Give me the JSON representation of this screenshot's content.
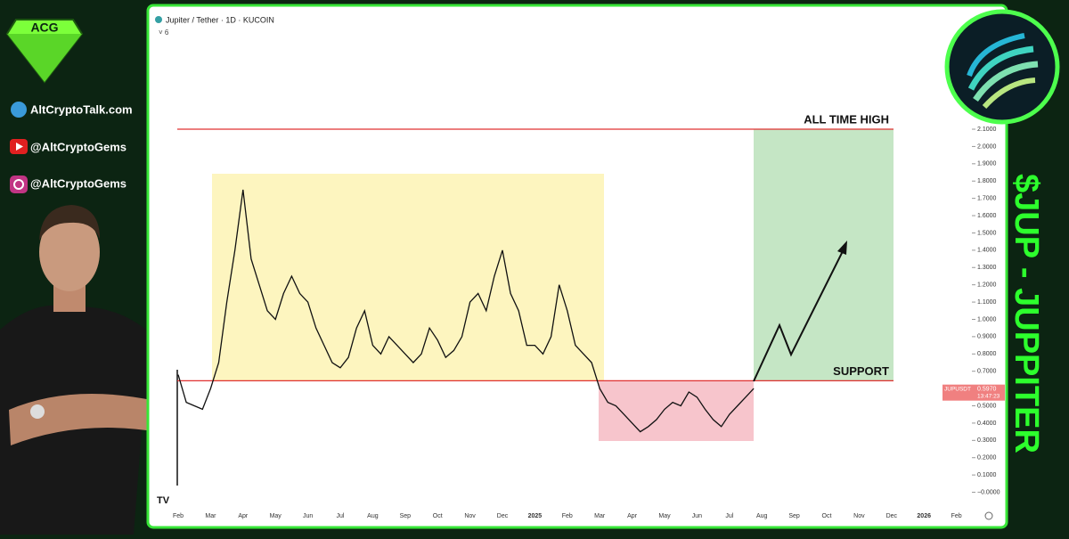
{
  "sidebar": {
    "website": "AltCryptoTalk.com",
    "youtube": "@AltCryptoGems",
    "instagram": "@AltCryptoGems"
  },
  "banner": "$JUP - JUPPITER",
  "chart_data": {
    "type": "line",
    "title": "Jupiter / Tether · 1D · KUCOIN",
    "indicators": 6,
    "categories": [
      "Feb",
      null,
      null,
      null,
      "Mar",
      null,
      null,
      null,
      "Apr",
      null,
      null,
      null,
      "May",
      null,
      null,
      null,
      "Jun",
      null,
      null,
      null,
      "Jul",
      null,
      null,
      null,
      "Aug",
      null,
      null,
      null,
      "Sep",
      null,
      null,
      null,
      "Oct",
      null,
      null,
      null,
      "Nov",
      null,
      null,
      null,
      "Dec",
      null,
      null,
      null,
      "2025",
      null,
      null,
      null,
      "Feb",
      null,
      null,
      null,
      "Mar",
      null,
      null,
      null,
      "Apr",
      null,
      null,
      null,
      "May",
      null,
      null,
      null,
      "Jun",
      null,
      null,
      null,
      "Jul",
      null,
      null,
      null,
      "Aug",
      null,
      null,
      null,
      "Sep",
      null,
      null,
      null,
      "Oct",
      null,
      null,
      null,
      "Nov",
      null,
      null,
      null,
      "Dec",
      null,
      null,
      null,
      "2026",
      null,
      null,
      null,
      "Feb",
      null
    ],
    "series": [
      {
        "name": "JUPUSDT",
        "color": "#111111",
        "values": [
          0.68,
          0.52,
          0.5,
          0.48,
          0.6,
          0.75,
          1.1,
          1.4,
          1.75,
          1.35,
          1.2,
          1.05,
          1.0,
          1.15,
          1.25,
          1.15,
          1.1,
          0.95,
          0.85,
          0.75,
          0.72,
          0.78,
          0.95,
          1.05,
          0.85,
          0.8,
          0.9,
          0.85,
          0.8,
          0.75,
          0.8,
          0.95,
          0.88,
          0.78,
          0.82,
          0.9,
          1.1,
          1.15,
          1.05,
          1.25,
          1.4,
          1.15,
          1.05,
          0.85,
          0.85,
          0.8,
          0.9,
          1.2,
          1.05,
          0.85,
          0.8,
          0.75,
          0.6,
          0.52,
          0.5,
          0.45,
          0.4,
          0.35,
          0.38,
          0.42,
          0.48,
          0.52,
          0.5,
          0.58,
          0.55,
          0.48,
          0.42,
          0.38,
          0.45,
          0.5,
          0.55,
          0.6,
          null,
          null,
          null,
          null,
          null,
          null,
          null,
          null,
          null,
          null,
          null,
          null,
          null,
          null,
          null,
          null,
          null,
          null,
          null,
          null,
          null,
          null,
          null,
          null,
          null,
          null
        ]
      }
    ],
    "ylim": [
      -0.09,
      2.77
    ],
    "yticks": [
      {
        "value": 0,
        "label": "−0.0000"
      },
      {
        "value": 0.1,
        "label": "0.1000"
      },
      {
        "value": 0.2,
        "label": "0.2000"
      },
      {
        "value": 0.3,
        "label": "0.3000"
      },
      {
        "value": 0.4,
        "label": "0.4000"
      },
      {
        "value": 0.5,
        "label": "0.5000"
      },
      {
        "value": 0.6,
        "label": "0.6000"
      },
      {
        "value": 0.7,
        "label": "0.7000"
      },
      {
        "value": 0.8,
        "label": "0.8000"
      },
      {
        "value": 0.9,
        "label": "0.9000"
      },
      {
        "value": 1.0,
        "label": "1.0000"
      },
      {
        "value": 1.1,
        "label": "1.1000"
      },
      {
        "value": 1.2,
        "label": "1.2000"
      },
      {
        "value": 1.3,
        "label": "1.3000"
      },
      {
        "value": 1.4,
        "label": "1.4000"
      },
      {
        "value": 1.5,
        "label": "1.5000"
      },
      {
        "value": 1.6,
        "label": "1.6000"
      },
      {
        "value": 1.7,
        "label": "1.7000"
      },
      {
        "value": 1.8,
        "label": "1.8000"
      },
      {
        "value": 1.9,
        "label": "1.9000"
      },
      {
        "value": 2.0,
        "label": "2.0000"
      },
      {
        "value": 2.1,
        "label": "2.1000"
      }
    ],
    "levels": [
      {
        "value": 2.1,
        "label": "ALL TIME HIGH",
        "color": "#e03030"
      },
      {
        "value": 0.645,
        "label": "SUPPORT",
        "color": "#e03030"
      }
    ],
    "price_tag": {
      "symbol": "JUPUSDT",
      "value": 0.597,
      "label": "0.5970",
      "countdown": "13:47:23",
      "color": "#f08080"
    }
  }
}
